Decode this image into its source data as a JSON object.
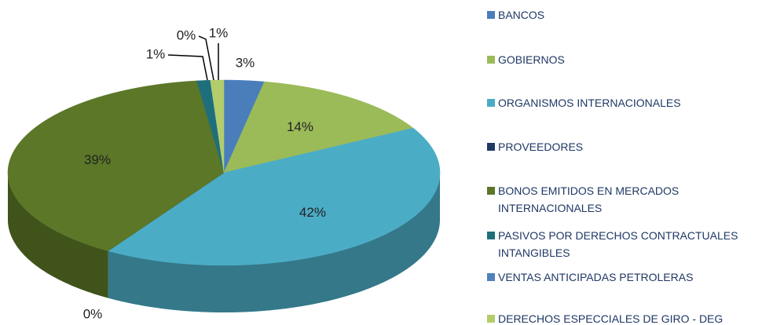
{
  "chart_data": {
    "type": "pie",
    "categories": [
      "BANCOS",
      "GOBIERNOS",
      "ORGANISMOS INTERNACIONALES",
      "PROVEEDORES",
      "BONOS EMITIDOS EN MERCADOS INTERNACIONALES",
      "PASIVOS POR DERECHOS CONTRACTUALES INTANGIBLES",
      "VENTAS ANTICIPADAS PETROLERAS",
      "DERECHOS ESPECCIALES DE GIRO - DEG"
    ],
    "values": [
      3,
      14,
      42,
      0,
      39,
      1,
      0,
      1
    ],
    "value_labels": [
      "3%",
      "14%",
      "42%",
      "0%",
      "39%",
      "1%",
      "0%",
      "1%"
    ],
    "colors": [
      "#4a7ebb",
      "#9bbb59",
      "#4bacc6",
      "#1f3864",
      "#5b7727",
      "#1f6e7c",
      "#4f81bd",
      "#b3cd6c"
    ],
    "legend": "right"
  }
}
